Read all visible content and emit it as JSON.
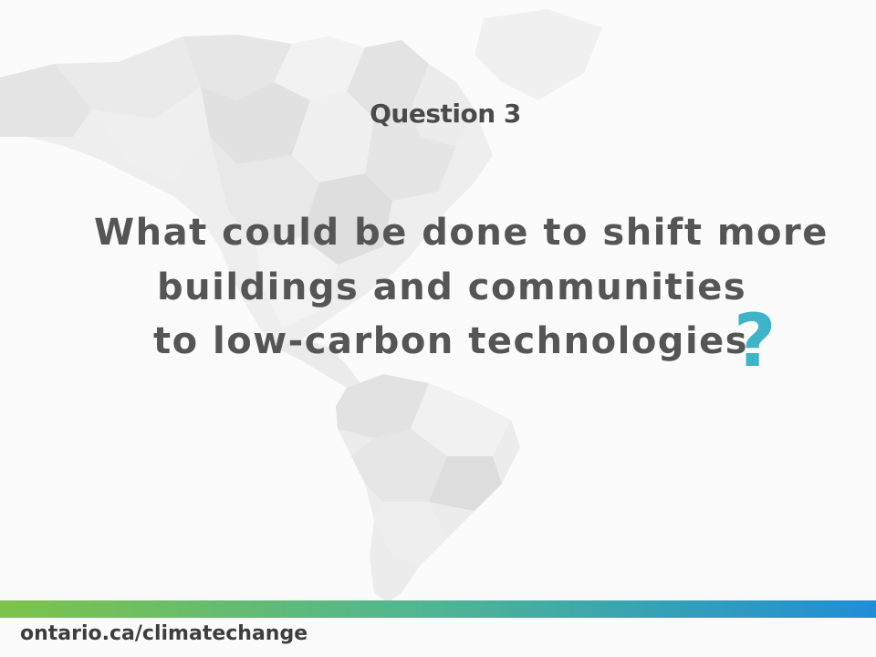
{
  "slide": {
    "heading": "Question 3",
    "question_lines": [
      "What could be done to shift more",
      "buildings and communities",
      "to low-carbon technologies"
    ],
    "question_mark": "?",
    "footer_url": "ontario.ca/climatechange"
  },
  "colors": {
    "text": "#555555",
    "accent": "#3fb3c7",
    "bar_start": "#7dc34a",
    "bar_end": "#1f8ed6"
  }
}
